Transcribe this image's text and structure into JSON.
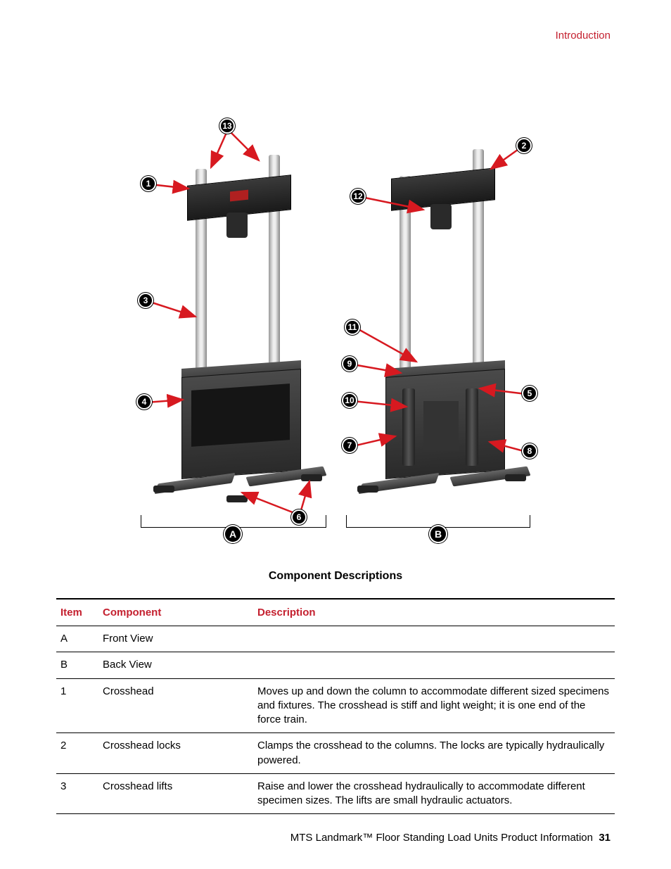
{
  "header": {
    "section": "Introduction"
  },
  "diagram": {
    "title": "Component Descriptions",
    "views": {
      "A": "Front View",
      "B": "Back View"
    },
    "callouts": {
      "c1": "1",
      "c2": "2",
      "c3": "3",
      "c4": "4",
      "c5": "5",
      "c6": "6",
      "c7": "7",
      "c8": "8",
      "c9": "9",
      "c10": "10",
      "c11": "11",
      "c12": "12",
      "c13": "13",
      "cA": "A",
      "cB": "B"
    },
    "arrow_color": "#d71920",
    "badge_bg": "#000000",
    "badge_fg": "#ffffff"
  },
  "table": {
    "headers": {
      "item": "Item",
      "component": "Component",
      "description": "Description"
    },
    "rows": [
      {
        "item": "A",
        "component": "Front View",
        "description": ""
      },
      {
        "item": "B",
        "component": "Back View",
        "description": ""
      },
      {
        "item": "1",
        "component": "Crosshead",
        "description": "Moves up and down the column to accommodate different sized specimens and fixtures. The crosshead is stiff and light weight; it is one end of the force train."
      },
      {
        "item": "2",
        "component": "Crosshead locks",
        "description": "Clamps the crosshead to the columns. The locks are typically hydraulically powered."
      },
      {
        "item": "3",
        "component": "Crosshead lifts",
        "description": "Raise and lower the crosshead hydraulically to accommodate different specimen sizes. The lifts are small hydraulic actuators."
      }
    ]
  },
  "footer": {
    "text": "MTS Landmark™ Floor Standing Load Units Product Information",
    "page": "31"
  },
  "colors": {
    "accent": "#c4202f",
    "text": "#000000",
    "bg": "#ffffff"
  }
}
